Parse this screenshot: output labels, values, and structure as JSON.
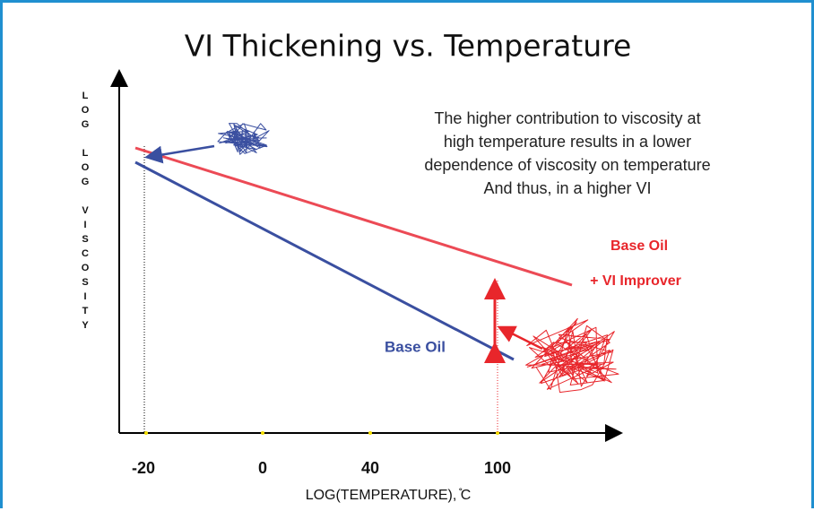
{
  "title": "VI Thickening vs. Temperature",
  "y_axis_label": "LOG LOG VISCOSITY",
  "x_axis_label": "LOG(TEMPERATURE),  ̊C",
  "x_ticks": [
    -20,
    0,
    40,
    100
  ],
  "annotation": [
    "The higher contribution to viscosity at",
    "high temperature results in a lower",
    "dependence of viscosity on temperature",
    "And thus, in a higher VI"
  ],
  "red_line_label": [
    "Base Oil",
    "+ VI Improver"
  ],
  "blue_line_label": "Base Oil"
}
